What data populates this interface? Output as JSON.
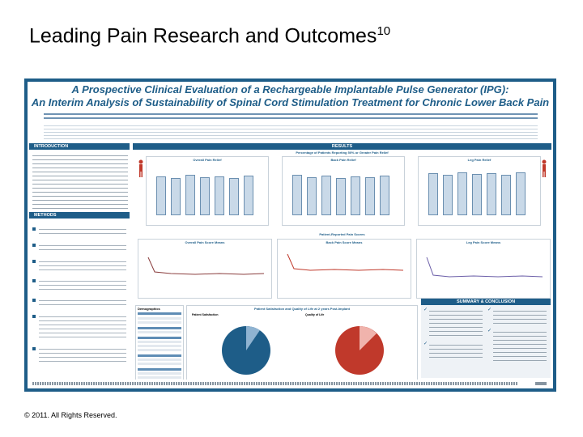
{
  "slide": {
    "title": "Leading Pain Research and Outcomes",
    "title_superscript": "10",
    "copyright": "© 2011. All Rights Reserved."
  },
  "poster": {
    "title_line1": "A Prospective Clinical Evaluation of a Rechargeable Implantable Pulse Generator (IPG):",
    "title_line2": "An Interim Analysis of Sustainability of Spinal Cord Stimulation Treatment for Chronic Lower Back Pain",
    "sections": {
      "introduction": "INTRODUCTION",
      "methods": "METHODS",
      "results": "RESULTS",
      "summary": "SUMMARY & CONCLUSION"
    },
    "results_heading": "Percentage of Patients Reporting 50% or Greater Pain Relief",
    "charts": {
      "overall": "Overall Pain Relief",
      "back": "Back Pain Relief",
      "leg": "Leg Pain Relief"
    },
    "scores_heading": "Patient-Reported Pain Scores",
    "score_charts": {
      "overall": "Overall Pain Score Means",
      "back": "Back Pain Score Means",
      "leg": "Leg Pain Score Means"
    },
    "demographics": "Demographics",
    "satisfaction_heading": "Patient Satisfaction and Quality of Life at 2 years Post-Implant",
    "satisfaction_sub1": "Patient Satisfaction",
    "satisfaction_sub2": "Quality of Life"
  },
  "colors": {
    "poster_blue": "#1e5d88",
    "bar_fill": "#c9d9e8"
  }
}
